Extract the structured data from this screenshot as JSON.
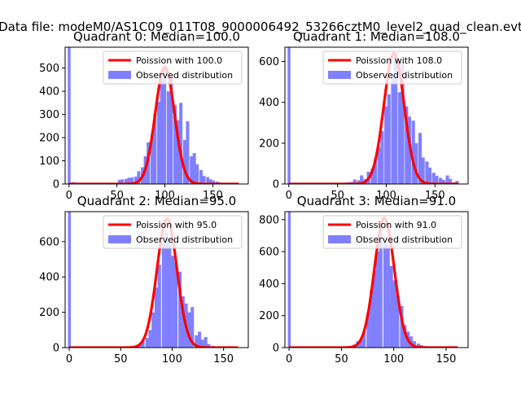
{
  "figure_title": "Data file: modeM0/AS1C09_011T08_9000006492_53266cztM0_level2_quad_clean.evt",
  "chart_data": [
    {
      "type": "bar",
      "title": "Quadrant 0: Median=100.0",
      "median": 100.0,
      "xlim": [
        -4,
        187
      ],
      "ylim": [
        0,
        590
      ],
      "xticks": [
        0,
        50,
        100,
        150
      ],
      "yticks": [
        0,
        100,
        200,
        300,
        400,
        500
      ],
      "legend": {
        "placement": "top-right",
        "line_label": "Poission with 100.0",
        "bar_label": "Observed distribution"
      },
      "hist_bin_width": 3.4,
      "hist_spike": {
        "x": 0,
        "value": 590
      },
      "hist": [
        {
          "x": 3,
          "value": 8
        },
        {
          "x": 6,
          "value": 4
        },
        {
          "x": 10,
          "value": 3
        },
        {
          "x": 13,
          "value": 2
        },
        {
          "x": 17,
          "value": 3
        },
        {
          "x": 20,
          "value": 2
        },
        {
          "x": 24,
          "value": 3
        },
        {
          "x": 27,
          "value": 2
        },
        {
          "x": 30,
          "value": 2
        },
        {
          "x": 34,
          "value": 2
        },
        {
          "x": 37,
          "value": 2
        },
        {
          "x": 41,
          "value": 3
        },
        {
          "x": 44,
          "value": 2
        },
        {
          "x": 47,
          "value": 4
        },
        {
          "x": 51,
          "value": 18
        },
        {
          "x": 54,
          "value": 20
        },
        {
          "x": 58,
          "value": 22
        },
        {
          "x": 61,
          "value": 27
        },
        {
          "x": 64,
          "value": 28
        },
        {
          "x": 68,
          "value": 32
        },
        {
          "x": 71,
          "value": 55
        },
        {
          "x": 75,
          "value": 72
        },
        {
          "x": 78,
          "value": 120
        },
        {
          "x": 81,
          "value": 180
        },
        {
          "x": 85,
          "value": 215
        },
        {
          "x": 88,
          "value": 305
        },
        {
          "x": 92,
          "value": 355
        },
        {
          "x": 95,
          "value": 455
        },
        {
          "x": 98,
          "value": 500
        },
        {
          "x": 102,
          "value": 400
        },
        {
          "x": 105,
          "value": 470
        },
        {
          "x": 109,
          "value": 340
        },
        {
          "x": 112,
          "value": 275
        },
        {
          "x": 115,
          "value": 350
        },
        {
          "x": 119,
          "value": 190
        },
        {
          "x": 122,
          "value": 270
        },
        {
          "x": 126,
          "value": 120
        },
        {
          "x": 129,
          "value": 133
        },
        {
          "x": 132,
          "value": 85
        },
        {
          "x": 136,
          "value": 60
        },
        {
          "x": 139,
          "value": 35
        },
        {
          "x": 143,
          "value": 30
        },
        {
          "x": 146,
          "value": 20
        },
        {
          "x": 149,
          "value": 15
        },
        {
          "x": 153,
          "value": 10
        },
        {
          "x": 156,
          "value": 6
        },
        {
          "x": 160,
          "value": 4
        },
        {
          "x": 163,
          "value": 3
        },
        {
          "x": 166,
          "value": 2
        },
        {
          "x": 170,
          "value": 2
        }
      ],
      "poisson_peak": 505
    },
    {
      "type": "bar",
      "title": "Quadrant 1: Median=108.0",
      "median": 108.0,
      "xlim": [
        -4,
        184
      ],
      "ylim": [
        0,
        670
      ],
      "xticks": [
        0,
        50,
        100,
        150
      ],
      "yticks": [
        0,
        200,
        400,
        600
      ],
      "legend": {
        "placement": "top-right",
        "line_label": "Poission with 108.0",
        "bar_label": "Observed distribution"
      },
      "hist_bin_width": 3.5,
      "hist_spike": {
        "x": 0,
        "value": 670
      },
      "hist": [
        {
          "x": 3,
          "value": 6
        },
        {
          "x": 7,
          "value": 5
        },
        {
          "x": 10,
          "value": 4
        },
        {
          "x": 14,
          "value": 3
        },
        {
          "x": 17,
          "value": 3
        },
        {
          "x": 21,
          "value": 2
        },
        {
          "x": 24,
          "value": 3
        },
        {
          "x": 28,
          "value": 2
        },
        {
          "x": 31,
          "value": 2
        },
        {
          "x": 35,
          "value": 2
        },
        {
          "x": 38,
          "value": 3
        },
        {
          "x": 42,
          "value": 2
        },
        {
          "x": 45,
          "value": 3
        },
        {
          "x": 49,
          "value": 3
        },
        {
          "x": 52,
          "value": 4
        },
        {
          "x": 56,
          "value": 6
        },
        {
          "x": 59,
          "value": 8
        },
        {
          "x": 63,
          "value": 10
        },
        {
          "x": 66,
          "value": 22
        },
        {
          "x": 70,
          "value": 18
        },
        {
          "x": 73,
          "value": 42
        },
        {
          "x": 77,
          "value": 25
        },
        {
          "x": 80,
          "value": 60
        },
        {
          "x": 84,
          "value": 75
        },
        {
          "x": 87,
          "value": 120
        },
        {
          "x": 91,
          "value": 180
        },
        {
          "x": 94,
          "value": 260
        },
        {
          "x": 98,
          "value": 380
        },
        {
          "x": 101,
          "value": 440
        },
        {
          "x": 105,
          "value": 540
        },
        {
          "x": 108,
          "value": 620
        },
        {
          "x": 112,
          "value": 450
        },
        {
          "x": 115,
          "value": 600
        },
        {
          "x": 119,
          "value": 380
        },
        {
          "x": 122,
          "value": 330
        },
        {
          "x": 126,
          "value": 310
        },
        {
          "x": 129,
          "value": 200
        },
        {
          "x": 133,
          "value": 250
        },
        {
          "x": 136,
          "value": 130
        },
        {
          "x": 140,
          "value": 110
        },
        {
          "x": 143,
          "value": 80
        },
        {
          "x": 147,
          "value": 55
        },
        {
          "x": 150,
          "value": 40
        },
        {
          "x": 154,
          "value": 30
        },
        {
          "x": 157,
          "value": 20
        },
        {
          "x": 161,
          "value": 42
        },
        {
          "x": 164,
          "value": 25
        },
        {
          "x": 168,
          "value": 8
        },
        {
          "x": 171,
          "value": 15
        }
      ],
      "poisson_peak": 640
    },
    {
      "type": "bar",
      "title": "Quadrant 2: Median=95.0",
      "median": 95.0,
      "xlim": [
        -4,
        174
      ],
      "ylim": [
        0,
        770
      ],
      "xticks": [
        0,
        50,
        100,
        150
      ],
      "yticks": [
        0,
        200,
        400,
        600
      ],
      "legend": {
        "placement": "top-right",
        "line_label": "Poission with 95.0",
        "bar_label": "Observed distribution"
      },
      "hist_bin_width": 3.2,
      "hist_spike": {
        "x": 0,
        "value": 770
      },
      "hist": [
        {
          "x": 3,
          "value": 2
        },
        {
          "x": 6,
          "value": 2
        },
        {
          "x": 10,
          "value": 2
        },
        {
          "x": 13,
          "value": 2
        },
        {
          "x": 16,
          "value": 2
        },
        {
          "x": 19,
          "value": 2
        },
        {
          "x": 22,
          "value": 2
        },
        {
          "x": 26,
          "value": 2
        },
        {
          "x": 29,
          "value": 2
        },
        {
          "x": 32,
          "value": 2
        },
        {
          "x": 35,
          "value": 2
        },
        {
          "x": 38,
          "value": 2
        },
        {
          "x": 42,
          "value": 2
        },
        {
          "x": 45,
          "value": 2
        },
        {
          "x": 48,
          "value": 3
        },
        {
          "x": 51,
          "value": 3
        },
        {
          "x": 54,
          "value": 4
        },
        {
          "x": 58,
          "value": 5
        },
        {
          "x": 61,
          "value": 8
        },
        {
          "x": 64,
          "value": 10
        },
        {
          "x": 67,
          "value": 20
        },
        {
          "x": 70,
          "value": 40
        },
        {
          "x": 74,
          "value": 55
        },
        {
          "x": 77,
          "value": 100
        },
        {
          "x": 80,
          "value": 200
        },
        {
          "x": 83,
          "value": 340
        },
        {
          "x": 86,
          "value": 470
        },
        {
          "x": 90,
          "value": 590
        },
        {
          "x": 93,
          "value": 650
        },
        {
          "x": 96,
          "value": 600
        },
        {
          "x": 99,
          "value": 520
        },
        {
          "x": 102,
          "value": 480
        },
        {
          "x": 106,
          "value": 430
        },
        {
          "x": 109,
          "value": 290
        },
        {
          "x": 112,
          "value": 250
        },
        {
          "x": 115,
          "value": 200
        },
        {
          "x": 118,
          "value": 230
        },
        {
          "x": 122,
          "value": 70
        },
        {
          "x": 125,
          "value": 90
        },
        {
          "x": 128,
          "value": 45
        },
        {
          "x": 131,
          "value": 60
        },
        {
          "x": 134,
          "value": 20
        },
        {
          "x": 138,
          "value": 10
        },
        {
          "x": 141,
          "value": 5
        },
        {
          "x": 144,
          "value": 3
        },
        {
          "x": 147,
          "value": 2
        },
        {
          "x": 150,
          "value": 2
        },
        {
          "x": 154,
          "value": 2
        },
        {
          "x": 157,
          "value": 2
        },
        {
          "x": 160,
          "value": 2
        }
      ],
      "poisson_peak": 730
    },
    {
      "type": "bar",
      "title": "Quadrant 3: Median=91.0",
      "median": 91.0,
      "xlim": [
        -4,
        171
      ],
      "ylim": [
        0,
        850
      ],
      "xticks": [
        0,
        50,
        100,
        150
      ],
      "yticks": [
        0,
        200,
        400,
        600,
        800
      ],
      "legend": {
        "placement": "top-right",
        "line_label": "Poission with 91.0",
        "bar_label": "Observed distribution"
      },
      "hist_bin_width": 3.2,
      "hist_spike": {
        "x": 0,
        "value": 850
      },
      "hist": [
        {
          "x": 3,
          "value": 2
        },
        {
          "x": 6,
          "value": 2
        },
        {
          "x": 10,
          "value": 2
        },
        {
          "x": 13,
          "value": 2
        },
        {
          "x": 16,
          "value": 2
        },
        {
          "x": 19,
          "value": 2
        },
        {
          "x": 22,
          "value": 2
        },
        {
          "x": 26,
          "value": 2
        },
        {
          "x": 29,
          "value": 2
        },
        {
          "x": 32,
          "value": 2
        },
        {
          "x": 35,
          "value": 2
        },
        {
          "x": 38,
          "value": 2
        },
        {
          "x": 42,
          "value": 2
        },
        {
          "x": 45,
          "value": 2
        },
        {
          "x": 48,
          "value": 4
        },
        {
          "x": 51,
          "value": 6
        },
        {
          "x": 54,
          "value": 8
        },
        {
          "x": 58,
          "value": 10
        },
        {
          "x": 61,
          "value": 20
        },
        {
          "x": 64,
          "value": 40
        },
        {
          "x": 67,
          "value": 50
        },
        {
          "x": 70,
          "value": 100
        },
        {
          "x": 74,
          "value": 220
        },
        {
          "x": 77,
          "value": 360
        },
        {
          "x": 80,
          "value": 480
        },
        {
          "x": 83,
          "value": 600
        },
        {
          "x": 86,
          "value": 720
        },
        {
          "x": 90,
          "value": 660
        },
        {
          "x": 93,
          "value": 640
        },
        {
          "x": 96,
          "value": 510
        },
        {
          "x": 99,
          "value": 420
        },
        {
          "x": 102,
          "value": 330
        },
        {
          "x": 106,
          "value": 260
        },
        {
          "x": 109,
          "value": 140
        },
        {
          "x": 112,
          "value": 100
        },
        {
          "x": 115,
          "value": 70
        },
        {
          "x": 118,
          "value": 40
        },
        {
          "x": 122,
          "value": 25
        },
        {
          "x": 125,
          "value": 15
        },
        {
          "x": 128,
          "value": 10
        },
        {
          "x": 131,
          "value": 6
        },
        {
          "x": 134,
          "value": 4
        },
        {
          "x": 138,
          "value": 3
        },
        {
          "x": 141,
          "value": 2
        },
        {
          "x": 144,
          "value": 2
        },
        {
          "x": 147,
          "value": 2
        },
        {
          "x": 150,
          "value": 2
        },
        {
          "x": 154,
          "value": 2
        },
        {
          "x": 157,
          "value": 2
        },
        {
          "x": 160,
          "value": 2
        }
      ],
      "poisson_peak": 810
    }
  ],
  "colors": {
    "hist": "#8080ff",
    "poisson_line": "#ff0000",
    "axes": "#000000",
    "text": "#000000"
  }
}
